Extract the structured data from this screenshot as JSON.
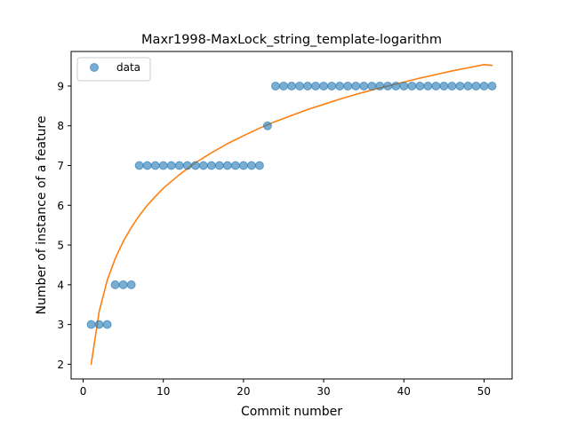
{
  "chart_data": {
    "type": "scatter",
    "title": "Maxr1998-MaxLock_string_template-logarithm",
    "xlabel": "Commit number",
    "ylabel": "Number of instance of a feature",
    "xlim": [
      -1.5,
      53.5
    ],
    "ylim": [
      1.63,
      9.87
    ],
    "xticks": [
      0,
      10,
      20,
      30,
      40,
      50
    ],
    "yticks": [
      2,
      3,
      4,
      5,
      6,
      7,
      8,
      9
    ],
    "grid": false,
    "legend": {
      "placement": "top-left",
      "entries": [
        "data"
      ]
    },
    "series": [
      {
        "name": "data",
        "kind": "scatter",
        "color": "#1f77b4",
        "x": [
          1,
          2,
          3,
          4,
          5,
          6,
          7,
          8,
          9,
          10,
          11,
          12,
          13,
          14,
          15,
          16,
          17,
          18,
          19,
          20,
          21,
          22,
          23,
          24,
          25,
          26,
          27,
          28,
          29,
          30,
          31,
          32,
          33,
          34,
          35,
          36,
          37,
          38,
          39,
          40,
          41,
          42,
          43,
          44,
          45,
          46,
          47,
          48,
          49,
          50,
          51
        ],
        "y": [
          3,
          3,
          3,
          4,
          4,
          4,
          7,
          7,
          7,
          7,
          7,
          7,
          7,
          7,
          7,
          7,
          7,
          7,
          7,
          7,
          7,
          7,
          8,
          9,
          9,
          9,
          9,
          9,
          9,
          9,
          9,
          9,
          9,
          9,
          9,
          9,
          9,
          9,
          9,
          9,
          9,
          9,
          9,
          9,
          9,
          9,
          9,
          9,
          9,
          9,
          9
        ]
      },
      {
        "kind": "line",
        "color": "#ff7f0e",
        "x": [
          1,
          2,
          3,
          4,
          5,
          6,
          7,
          8,
          9,
          10,
          12,
          14,
          16,
          18,
          20,
          22,
          24,
          26,
          28,
          30,
          32,
          34,
          36,
          38,
          40,
          42,
          44,
          46,
          48,
          50,
          51
        ],
        "y": [
          2.0,
          3.33,
          4.11,
          4.66,
          5.09,
          5.44,
          5.74,
          6.0,
          6.22,
          6.43,
          6.77,
          7.07,
          7.32,
          7.55,
          7.75,
          7.94,
          8.11,
          8.26,
          8.41,
          8.54,
          8.67,
          8.79,
          8.9,
          9.0,
          9.1,
          9.2,
          9.29,
          9.38,
          9.46,
          9.54,
          9.52
        ]
      }
    ]
  }
}
